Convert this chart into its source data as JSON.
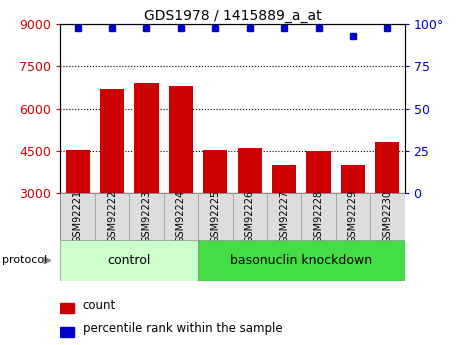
{
  "title": "GDS1978 / 1415889_a_at",
  "samples": [
    "GSM92221",
    "GSM92222",
    "GSM92223",
    "GSM92224",
    "GSM92225",
    "GSM92226",
    "GSM92227",
    "GSM92228",
    "GSM92229",
    "GSM92230"
  ],
  "counts": [
    4550,
    6700,
    6900,
    6800,
    4550,
    4600,
    4000,
    4500,
    4000,
    4800
  ],
  "percentile_ranks": [
    98,
    98,
    98,
    98,
    98,
    98,
    98,
    98,
    93,
    98
  ],
  "ylim_left": [
    3000,
    9000
  ],
  "ylim_right": [
    0,
    100
  ],
  "yticks_left": [
    3000,
    4500,
    6000,
    7500,
    9000
  ],
  "yticks_right": [
    0,
    25,
    50,
    75,
    100
  ],
  "ytick_right_labels": [
    "0",
    "25",
    "50",
    "75",
    "100°"
  ],
  "bar_color": "#cc0000",
  "dot_color": "#0000cc",
  "ctrl_color": "#ccffcc",
  "baso_color": "#44dd44",
  "ctrl_label": "control",
  "baso_label": "basonuclin knockdown",
  "protocol_label": "protocol",
  "legend_count_label": "count",
  "legend_percentile_label": "percentile rank within the sample",
  "tick_label_color_left": "#cc0000",
  "tick_label_color_right": "#0000cc",
  "tick_box_color": "#dddddd",
  "tick_box_ec": "#999999"
}
